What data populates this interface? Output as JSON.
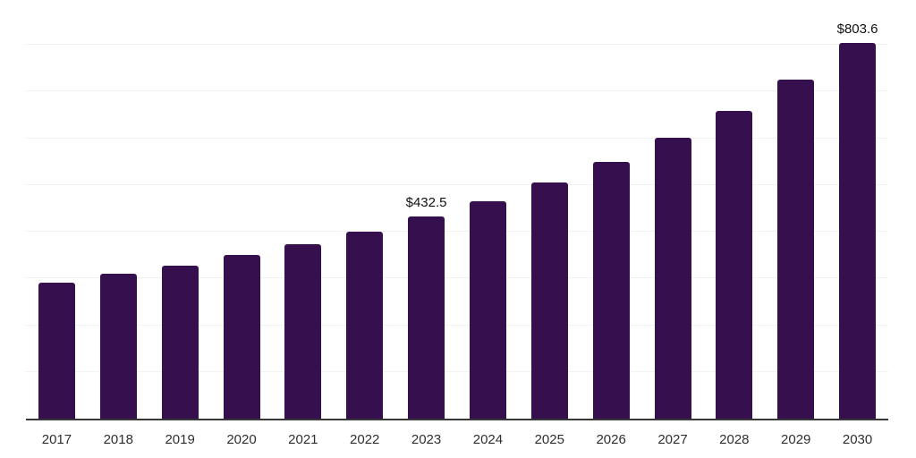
{
  "chart_data": {
    "type": "bar",
    "title": "",
    "xlabel": "",
    "ylabel": "",
    "categories": [
      "2017",
      "2018",
      "2019",
      "2020",
      "2021",
      "2022",
      "2023",
      "2024",
      "2025",
      "2026",
      "2027",
      "2028",
      "2029",
      "2030"
    ],
    "values": [
      291,
      310,
      328,
      350,
      374,
      400,
      432.5,
      465,
      506,
      549,
      601,
      658,
      726,
      803.6
    ],
    "data_labels": [
      "",
      "",
      "",
      "",
      "",
      "",
      "$432.5",
      "",
      "",
      "",
      "",
      "",
      "",
      "$803.6"
    ],
    "ylim": [
      0,
      900
    ],
    "gridline_step": 100,
    "y_tick_labels_visible": false,
    "grid": "horizontal",
    "legend": "none",
    "bar_color": "#36104E",
    "gridline_color": "#f2f2f2",
    "axis_line_color": "#383838",
    "data_label_color": "#111111",
    "tick_label_color": "#2f2f2f"
  }
}
